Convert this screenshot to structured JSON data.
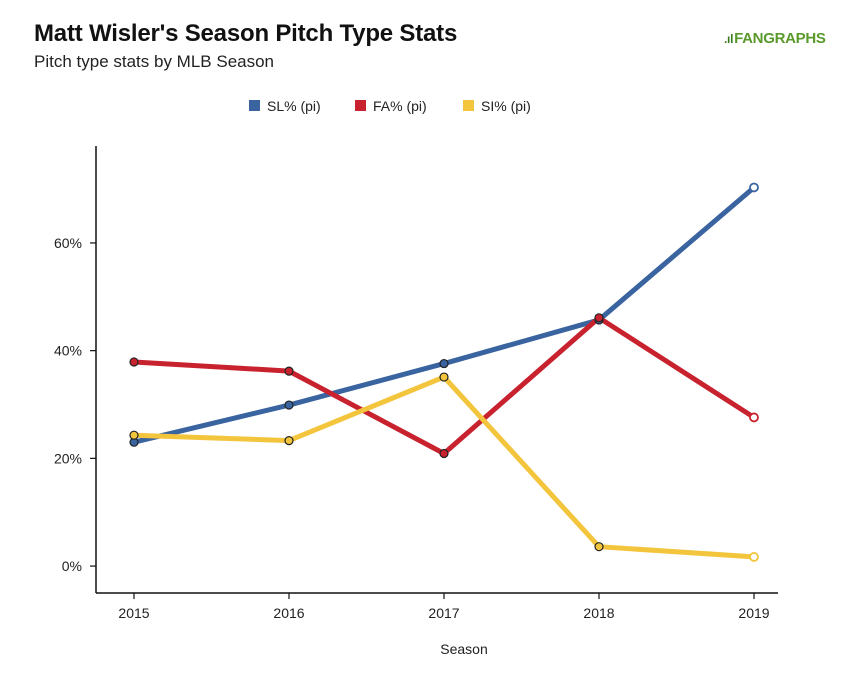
{
  "header": {
    "title": "Matt Wisler's Season Pitch Type Stats",
    "subtitle": "Pitch type stats by MLB Season",
    "logo_text": "FANGRAPHS"
  },
  "chart_data": {
    "type": "line",
    "title": "Matt Wisler's Season Pitch Type Stats",
    "subtitle": "Pitch type stats by MLB Season",
    "xlabel": "Season",
    "ylabel": "",
    "categories": [
      "2015",
      "2016",
      "2017",
      "2018",
      "2019"
    ],
    "ylim": [
      -5,
      78
    ],
    "yticks": [
      0,
      20,
      40,
      60
    ],
    "ytick_labels": [
      "0%",
      "20%",
      "40%",
      "60%"
    ],
    "grid": false,
    "legend_position": "top-center",
    "series": [
      {
        "name": "SL% (pi)",
        "color": "#3a64a0",
        "values": [
          23.0,
          29.9,
          37.6,
          45.7,
          70.3
        ]
      },
      {
        "name": "FA% (pi)",
        "color": "#c8222f",
        "values": [
          37.9,
          36.2,
          20.9,
          46.1,
          27.6
        ]
      },
      {
        "name": "SI% (pi)",
        "color": "#f2c53d",
        "values": [
          24.3,
          23.3,
          35.1,
          3.6,
          1.7
        ]
      }
    ]
  }
}
